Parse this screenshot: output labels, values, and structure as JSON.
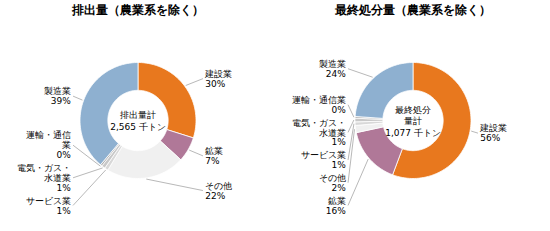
{
  "chart_data": [
    {
      "type": "pie",
      "title": "排出量（農業系を除く）",
      "annotations": [
        "排出量計\n2,565 千トン"
      ],
      "categories": [
        "建設業",
        "鉱業",
        "その他",
        "サービス業",
        "電気・ガス・\n水道業",
        "運輸・通信\n業",
        "製造業"
      ],
      "values": [
        30,
        7,
        22,
        1,
        1,
        0.5,
        39
      ],
      "value_labels": [
        "30%",
        "7%",
        "22%",
        "1%",
        "1%",
        "0%",
        "39%"
      ],
      "colors": [
        "#E8781E",
        "#B07898",
        "#F0F0F0",
        "#D8D8D8",
        "#C8C8C8",
        "#B0B0B0",
        "#8EB0D0"
      ],
      "data_labels": true
    },
    {
      "type": "pie",
      "title": "最終処分量（農業系を除く）",
      "annotations": [
        "最終処分\n量計\n1,077 千トン"
      ],
      "categories": [
        "建設業",
        "鉱業",
        "その他",
        "サービス業",
        "電気・ガス・\n水道業",
        "運輸・通信業",
        "製造業"
      ],
      "values": [
        56,
        16,
        2,
        1,
        1,
        0.5,
        24
      ],
      "value_labels": [
        "56%",
        "16%",
        "2%",
        "1%",
        "1%",
        "0%",
        "24%"
      ],
      "colors": [
        "#E8781E",
        "#B07898",
        "#F0F0F0",
        "#D8D8D8",
        "#C8C8C8",
        "#B0B0B0",
        "#8EB0D0"
      ],
      "data_labels": true
    }
  ]
}
